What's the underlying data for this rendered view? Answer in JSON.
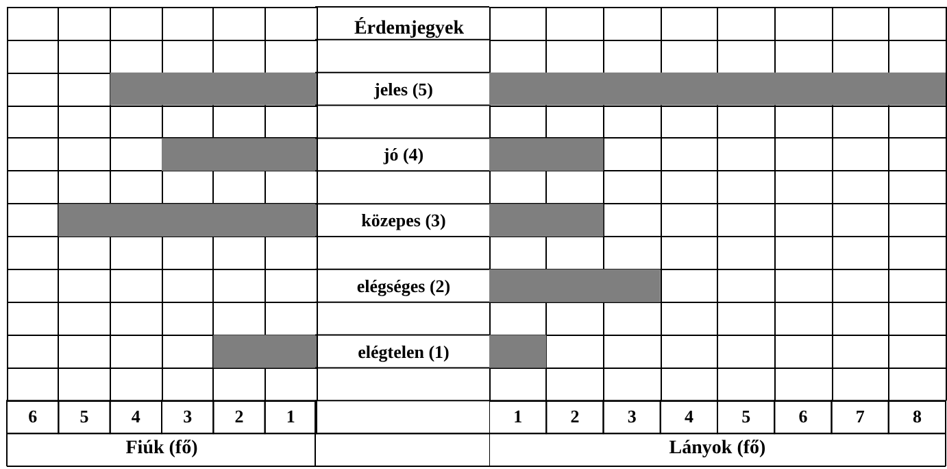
{
  "chart_data": [
    {
      "type": "bar",
      "orientation": "horizontal",
      "title": "Érdemjegyek",
      "categories": [
        "jeles (5)",
        "jó (4)",
        "közepes (3)",
        "elégséges (2)",
        "elégtelen (1)"
      ],
      "values": [
        4,
        3,
        5,
        0,
        2
      ],
      "color": "#7f7f7f",
      "xlabel": "Fiúk (fő)",
      "xlim": [
        6,
        0
      ],
      "xticks": [
        {
          "value": 5.5,
          "label": "6"
        },
        {
          "value": 4.5,
          "label": "5"
        },
        {
          "value": 3.5,
          "label": "4"
        },
        {
          "value": 2.5,
          "label": "3"
        },
        {
          "value": 1.5,
          "label": "2"
        },
        {
          "value": 0.5,
          "label": "1"
        }
      ],
      "grid": true
    },
    {
      "type": "bar",
      "orientation": "horizontal",
      "categories": [
        null,
        null,
        null,
        null,
        null
      ],
      "values": [
        8,
        2,
        2,
        3,
        1
      ],
      "color": "#7f7f7f",
      "xlabel": "Lányok (fő)",
      "xlim": [
        0,
        8
      ],
      "xticks": [
        {
          "value": 0.5,
          "label": "1"
        },
        {
          "value": 1.5,
          "label": "2"
        },
        {
          "value": 2.5,
          "label": "3"
        },
        {
          "value": 3.5,
          "label": "4"
        },
        {
          "value": 4.5,
          "label": "5"
        },
        {
          "value": 5.5,
          "label": "6"
        },
        {
          "value": 6.5,
          "label": "7"
        },
        {
          "value": 7.5,
          "label": "8"
        }
      ],
      "grid": true,
      "tick_labels": "x"
    }
  ]
}
